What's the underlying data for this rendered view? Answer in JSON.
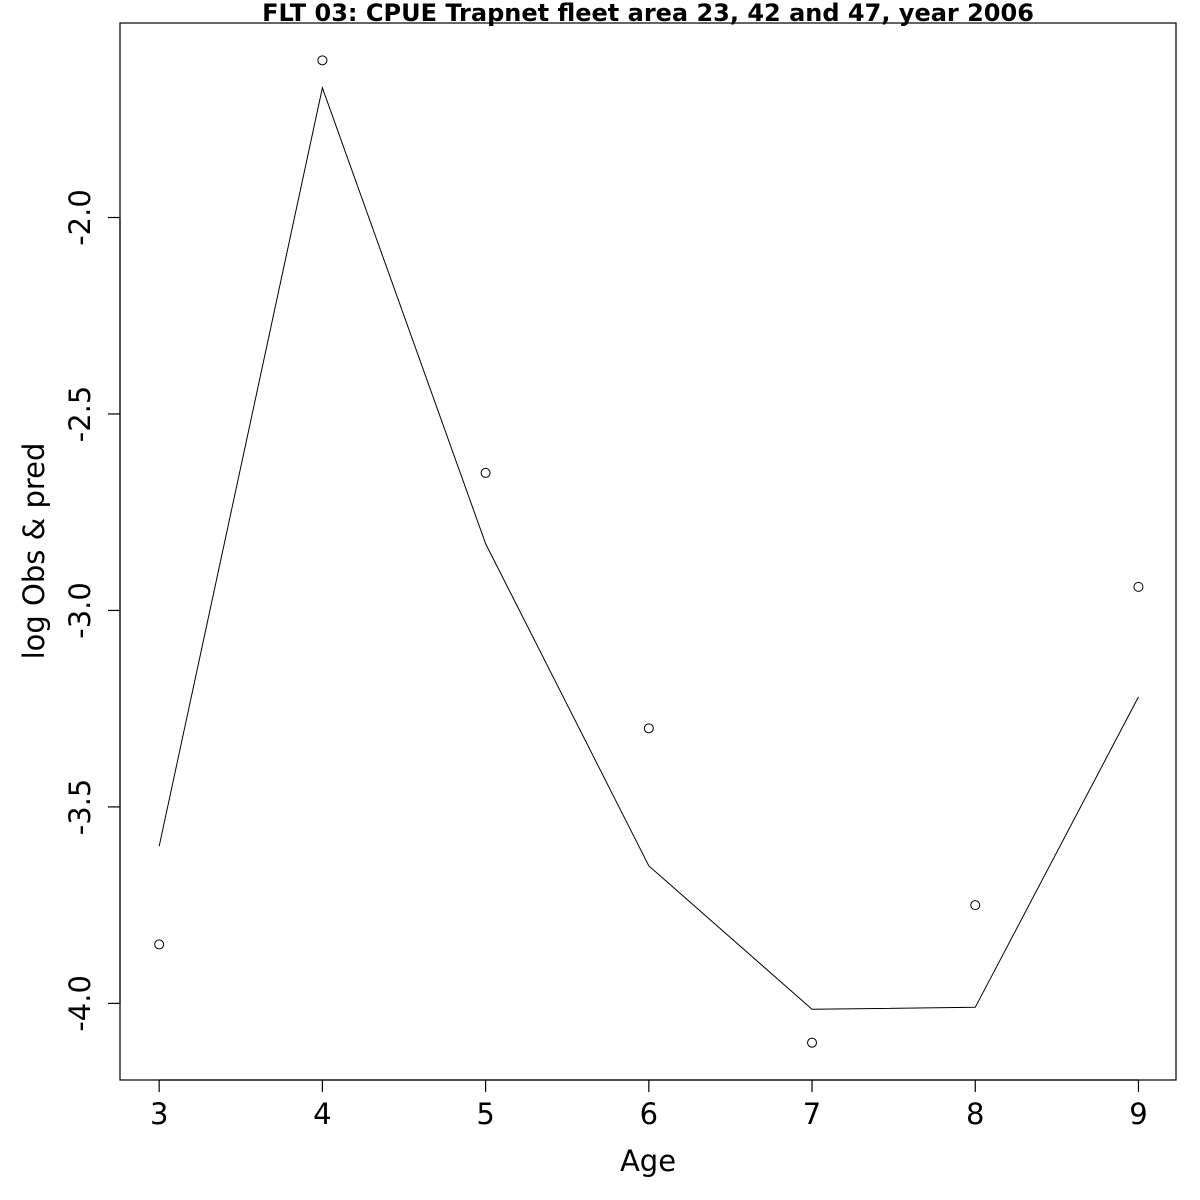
{
  "chart_data": {
    "type": "scatter",
    "title": "FLT 03: CPUE Trapnet fleet area 23, 42 and 47, year 2006",
    "xlabel": "Age",
    "ylabel": "log Obs & pred",
    "x_ticks": [
      "3",
      "4",
      "5",
      "6",
      "7",
      "8",
      "9"
    ],
    "y_ticks": [
      "-2.0",
      "-2.5",
      "-3.0",
      "-3.5",
      "-4.0"
    ],
    "xlim": [
      2.76,
      9.23
    ],
    "ylim": [
      -4.195,
      -1.505
    ],
    "grid": false,
    "legend": "none",
    "series": [
      {
        "kind": "points",
        "x": [
          3,
          4,
          5,
          6,
          7,
          8,
          9
        ],
        "y": [
          -3.85,
          -1.6,
          -2.65,
          -3.3,
          -4.1,
          -3.75,
          -2.94
        ]
      },
      {
        "kind": "line",
        "x": [
          3,
          4,
          5,
          6,
          7,
          8,
          9
        ],
        "y": [
          -3.6,
          -1.67,
          -2.83,
          -3.65,
          -4.015,
          -4.01,
          -3.22
        ]
      }
    ],
    "colors": {
      "points": "#000000",
      "line": "#000000",
      "frame": "#000000"
    }
  }
}
